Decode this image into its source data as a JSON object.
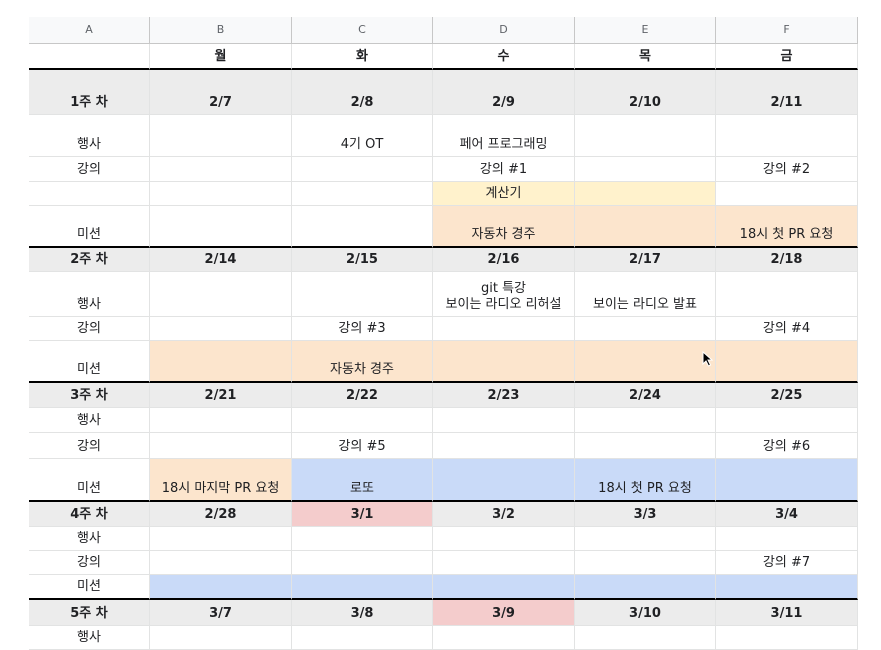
{
  "columns": [
    "A",
    "B",
    "C",
    "D",
    "E",
    "F"
  ],
  "days": [
    "",
    "월",
    "화",
    "수",
    "목",
    "금"
  ],
  "weeks": [
    {
      "label": "1주 차",
      "dates": [
        "2/7",
        "2/8",
        "2/9",
        "2/10",
        "2/11"
      ],
      "event": [
        "",
        "4기 OT",
        "페어 프로그래밍",
        "",
        ""
      ],
      "lecture": [
        "",
        "",
        "강의 #1",
        "",
        "강의 #2"
      ],
      "mission_top": [
        "",
        "",
        "계산기",
        "",
        ""
      ],
      "mission": [
        "",
        "",
        "자동차 경주",
        "",
        "18시 첫 PR 요청"
      ]
    },
    {
      "label": "2주 차",
      "dates": [
        "2/14",
        "2/15",
        "2/16",
        "2/17",
        "2/18"
      ],
      "event": [
        "",
        "",
        "git 특강\n보이는 라디오 리허설",
        "보이는 라디오 발표",
        ""
      ],
      "lecture": [
        "",
        "강의 #3",
        "",
        "",
        "강의 #4"
      ],
      "mission": [
        "",
        "자동차 경주",
        "",
        "",
        ""
      ]
    },
    {
      "label": "3주 차",
      "dates": [
        "2/21",
        "2/22",
        "2/23",
        "2/24",
        "2/25"
      ],
      "event": [
        "",
        "",
        "",
        "",
        ""
      ],
      "lecture": [
        "",
        "강의 #5",
        "",
        "",
        "강의 #6"
      ],
      "mission": [
        "18시 마지막 PR 요청",
        "로또",
        "",
        "18시 첫 PR 요청",
        ""
      ]
    },
    {
      "label": "4주 차",
      "dates": [
        "2/28",
        "3/1",
        "3/2",
        "3/3",
        "3/4"
      ],
      "event": [
        "",
        "",
        "",
        "",
        ""
      ],
      "lecture": [
        "",
        "",
        "",
        "",
        "강의 #7"
      ],
      "mission": [
        "",
        "",
        "",
        "",
        ""
      ]
    },
    {
      "label": "5주 차",
      "dates": [
        "3/7",
        "3/8",
        "3/9",
        "3/10",
        "3/11"
      ],
      "event": [
        "",
        "",
        "",
        "",
        ""
      ]
    }
  ],
  "row_labels": {
    "event": "행사",
    "lecture": "강의",
    "mission": "미션"
  },
  "colors": {
    "orange": "#fce5cd",
    "yellow": "#fff2cc",
    "blue": "#c9daf8",
    "red": "#f4cccc",
    "week": "#ececec"
  }
}
